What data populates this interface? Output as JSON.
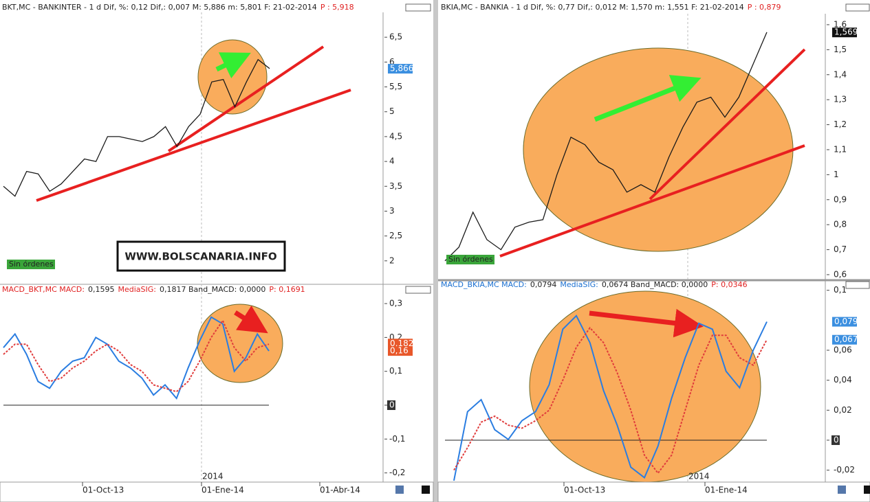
{
  "chart_data": [
    {
      "type": "line",
      "header": [
        {
          "text": "BKT,MC - BANKINTER -  1 d Dif, %: 0,12 Dif,: 0,007 M: 5,886 m: 5,801 F: 21-02-2014",
          "color": "#222222"
        },
        {
          "text": "P : 5,918",
          "color": "#e02020"
        }
      ],
      "values": [
        3.5,
        3.3,
        3.8,
        3.75,
        3.4,
        3.55,
        3.8,
        4.05,
        4.0,
        4.5,
        4.5,
        4.45,
        4.4,
        4.5,
        4.7,
        4.3,
        4.7,
        4.95,
        5.6,
        5.65,
        5.1,
        5.6,
        6.05,
        5.87
      ],
      "color": "#1a1a1a",
      "ylim": [
        1.5,
        7
      ],
      "yticks": [
        2,
        {
          "value": 2.5,
          "label": "2,5"
        },
        3,
        {
          "value": 3.5,
          "label": "3,5"
        },
        4,
        {
          "value": 4.5,
          "label": "4,5"
        },
        5,
        {
          "value": 5.5,
          "label": "5,5"
        },
        6,
        {
          "value": 6.5,
          "label": "6,5"
        }
      ],
      "tags": [
        {
          "value": 5.866,
          "label": "5,866",
          "color": "#3b8fe0"
        }
      ],
      "annotations": [
        "Sin órdenes",
        "WWW.BOLSCANARIA.INFO"
      ]
    },
    {
      "type": "line",
      "header": [
        {
          "text": "MACD_BKT,MC MACD:",
          "color": "#e02020"
        },
        {
          "text": "0,1595",
          "color": "#222222"
        },
        {
          "text": "MediaSIG:",
          "color": "#e02020"
        },
        {
          "text": "0,1817 Band_MACD: 0,0000",
          "color": "#222222"
        },
        {
          "text": "P: 0,1691",
          "color": "#e02020"
        }
      ],
      "series": [
        {
          "color": "#2a7de1",
          "dash": false,
          "values": [
            0.17,
            0.21,
            0.15,
            0.07,
            0.05,
            0.1,
            0.13,
            0.14,
            0.2,
            0.18,
            0.13,
            0.11,
            0.08,
            0.03,
            0.06,
            0.02,
            0.11,
            0.19,
            0.26,
            0.24,
            0.1,
            0.14,
            0.21,
            0.16
          ]
        },
        {
          "color": "#e03c3c",
          "dash": true,
          "values": [
            0.15,
            0.18,
            0.18,
            0.12,
            0.07,
            0.08,
            0.11,
            0.13,
            0.16,
            0.18,
            0.16,
            0.12,
            0.1,
            0.06,
            0.05,
            0.04,
            0.07,
            0.13,
            0.2,
            0.25,
            0.17,
            0.13,
            0.17,
            0.18
          ]
        }
      ],
      "ylim": [
        -0.22,
        0.32
      ],
      "yticks": [
        {
          "value": -0.2,
          "label": "-0,2"
        },
        {
          "value": -0.1,
          "label": "-0,1"
        },
        0,
        {
          "value": 0.1,
          "label": "0,1"
        },
        {
          "value": 0.2,
          "label": "0,2"
        },
        {
          "value": 0.3,
          "label": "0,3"
        }
      ],
      "tags": [
        {
          "value": 0.182,
          "label": "0,182",
          "color": "#e8572a"
        },
        {
          "value": 0.16,
          "label": "0,16",
          "color": "#e8572a"
        }
      ],
      "date_labels": [
        "01-Oct-13",
        "01-Ene-14",
        "01-Abr-14"
      ],
      "year_label": "2014"
    },
    {
      "type": "line",
      "header": [
        {
          "text": "BKIA,MC - BANKIA -  1 d Dif, %: 0,77 Dif,: 0,012 M: 1,570 m: 1,551 F: 21-02-2014",
          "color": "#222222"
        },
        {
          "text": "P : 0,879",
          "color": "#e02020"
        }
      ],
      "values": [
        0.655,
        0.71,
        0.85,
        0.74,
        0.7,
        0.79,
        0.81,
        0.82,
        1.0,
        1.15,
        1.12,
        1.05,
        1.02,
        0.93,
        0.96,
        0.93,
        1.07,
        1.19,
        1.29,
        1.31,
        1.23,
        1.31,
        1.44,
        1.57
      ],
      "color": "#1a1a1a",
      "ylim": [
        0.59,
        1.64
      ],
      "yticks": [
        {
          "value": 0.6,
          "label": "0,6"
        },
        {
          "value": 0.7,
          "label": "0,7"
        },
        {
          "value": 0.8,
          "label": "0,8"
        },
        {
          "value": 0.9,
          "label": "0,9"
        },
        1,
        {
          "value": 1.1,
          "label": "1,1"
        },
        {
          "value": 1.2,
          "label": "1,2"
        },
        {
          "value": 1.3,
          "label": "1,3"
        },
        {
          "value": 1.4,
          "label": "1,4"
        },
        {
          "value": 1.5,
          "label": "1,5"
        },
        {
          "value": 1.6,
          "label": "1,6"
        }
      ],
      "tags": [
        {
          "value": 1.569,
          "label": "1,569",
          "color": "#111111"
        }
      ],
      "annotations": [
        "Sin órdenes"
      ]
    },
    {
      "type": "line",
      "header": [
        {
          "text": "MACD_BKIA,MC MACD:",
          "color": "#1a6fd0"
        },
        {
          "text": "0,0794",
          "color": "#222222"
        },
        {
          "text": "MediaSIG:",
          "color": "#1a6fd0"
        },
        {
          "text": "0,0674 Band_MACD: 0,0000",
          "color": "#222222"
        },
        {
          "text": "P: 0,0346",
          "color": "#e02020"
        }
      ],
      "series": [
        {
          "color": "#2a7de1",
          "dash": false,
          "values": [
            -0.027,
            0.019,
            0.027,
            0.007,
            0.0005,
            0.013,
            0.019,
            0.037,
            0.074,
            0.083,
            0.065,
            0.033,
            0.01,
            -0.018,
            -0.025,
            -0.004,
            0.028,
            0.055,
            0.078,
            0.074,
            0.046,
            0.035,
            0.06,
            0.079
          ]
        },
        {
          "color": "#e03c3c",
          "dash": true,
          "values": [
            -0.02,
            -0.005,
            0.012,
            0.016,
            0.01,
            0.008,
            0.013,
            0.02,
            0.04,
            0.062,
            0.075,
            0.065,
            0.045,
            0.02,
            -0.01,
            -0.022,
            -0.01,
            0.02,
            0.05,
            0.07,
            0.07,
            0.055,
            0.05,
            0.067
          ]
        }
      ],
      "ylim": [
        -0.027,
        0.1
      ],
      "yticks": [
        {
          "value": -0.02,
          "label": "-0,02"
        },
        0,
        {
          "value": 0.02,
          "label": "0,02"
        },
        {
          "value": 0.04,
          "label": "0,04"
        },
        {
          "value": 0.06,
          "label": "0,06"
        },
        {
          "value": 0.1,
          "label": "0,1"
        }
      ],
      "tags": [
        {
          "value": 0.079,
          "label": "0,079",
          "color": "#3b8fe0"
        },
        {
          "value": 0.067,
          "label": "0,067",
          "color": "#3b8fe0"
        }
      ],
      "date_labels": [
        "01-Oct-13",
        "01-Ene-14"
      ],
      "year_label": "2014"
    }
  ]
}
